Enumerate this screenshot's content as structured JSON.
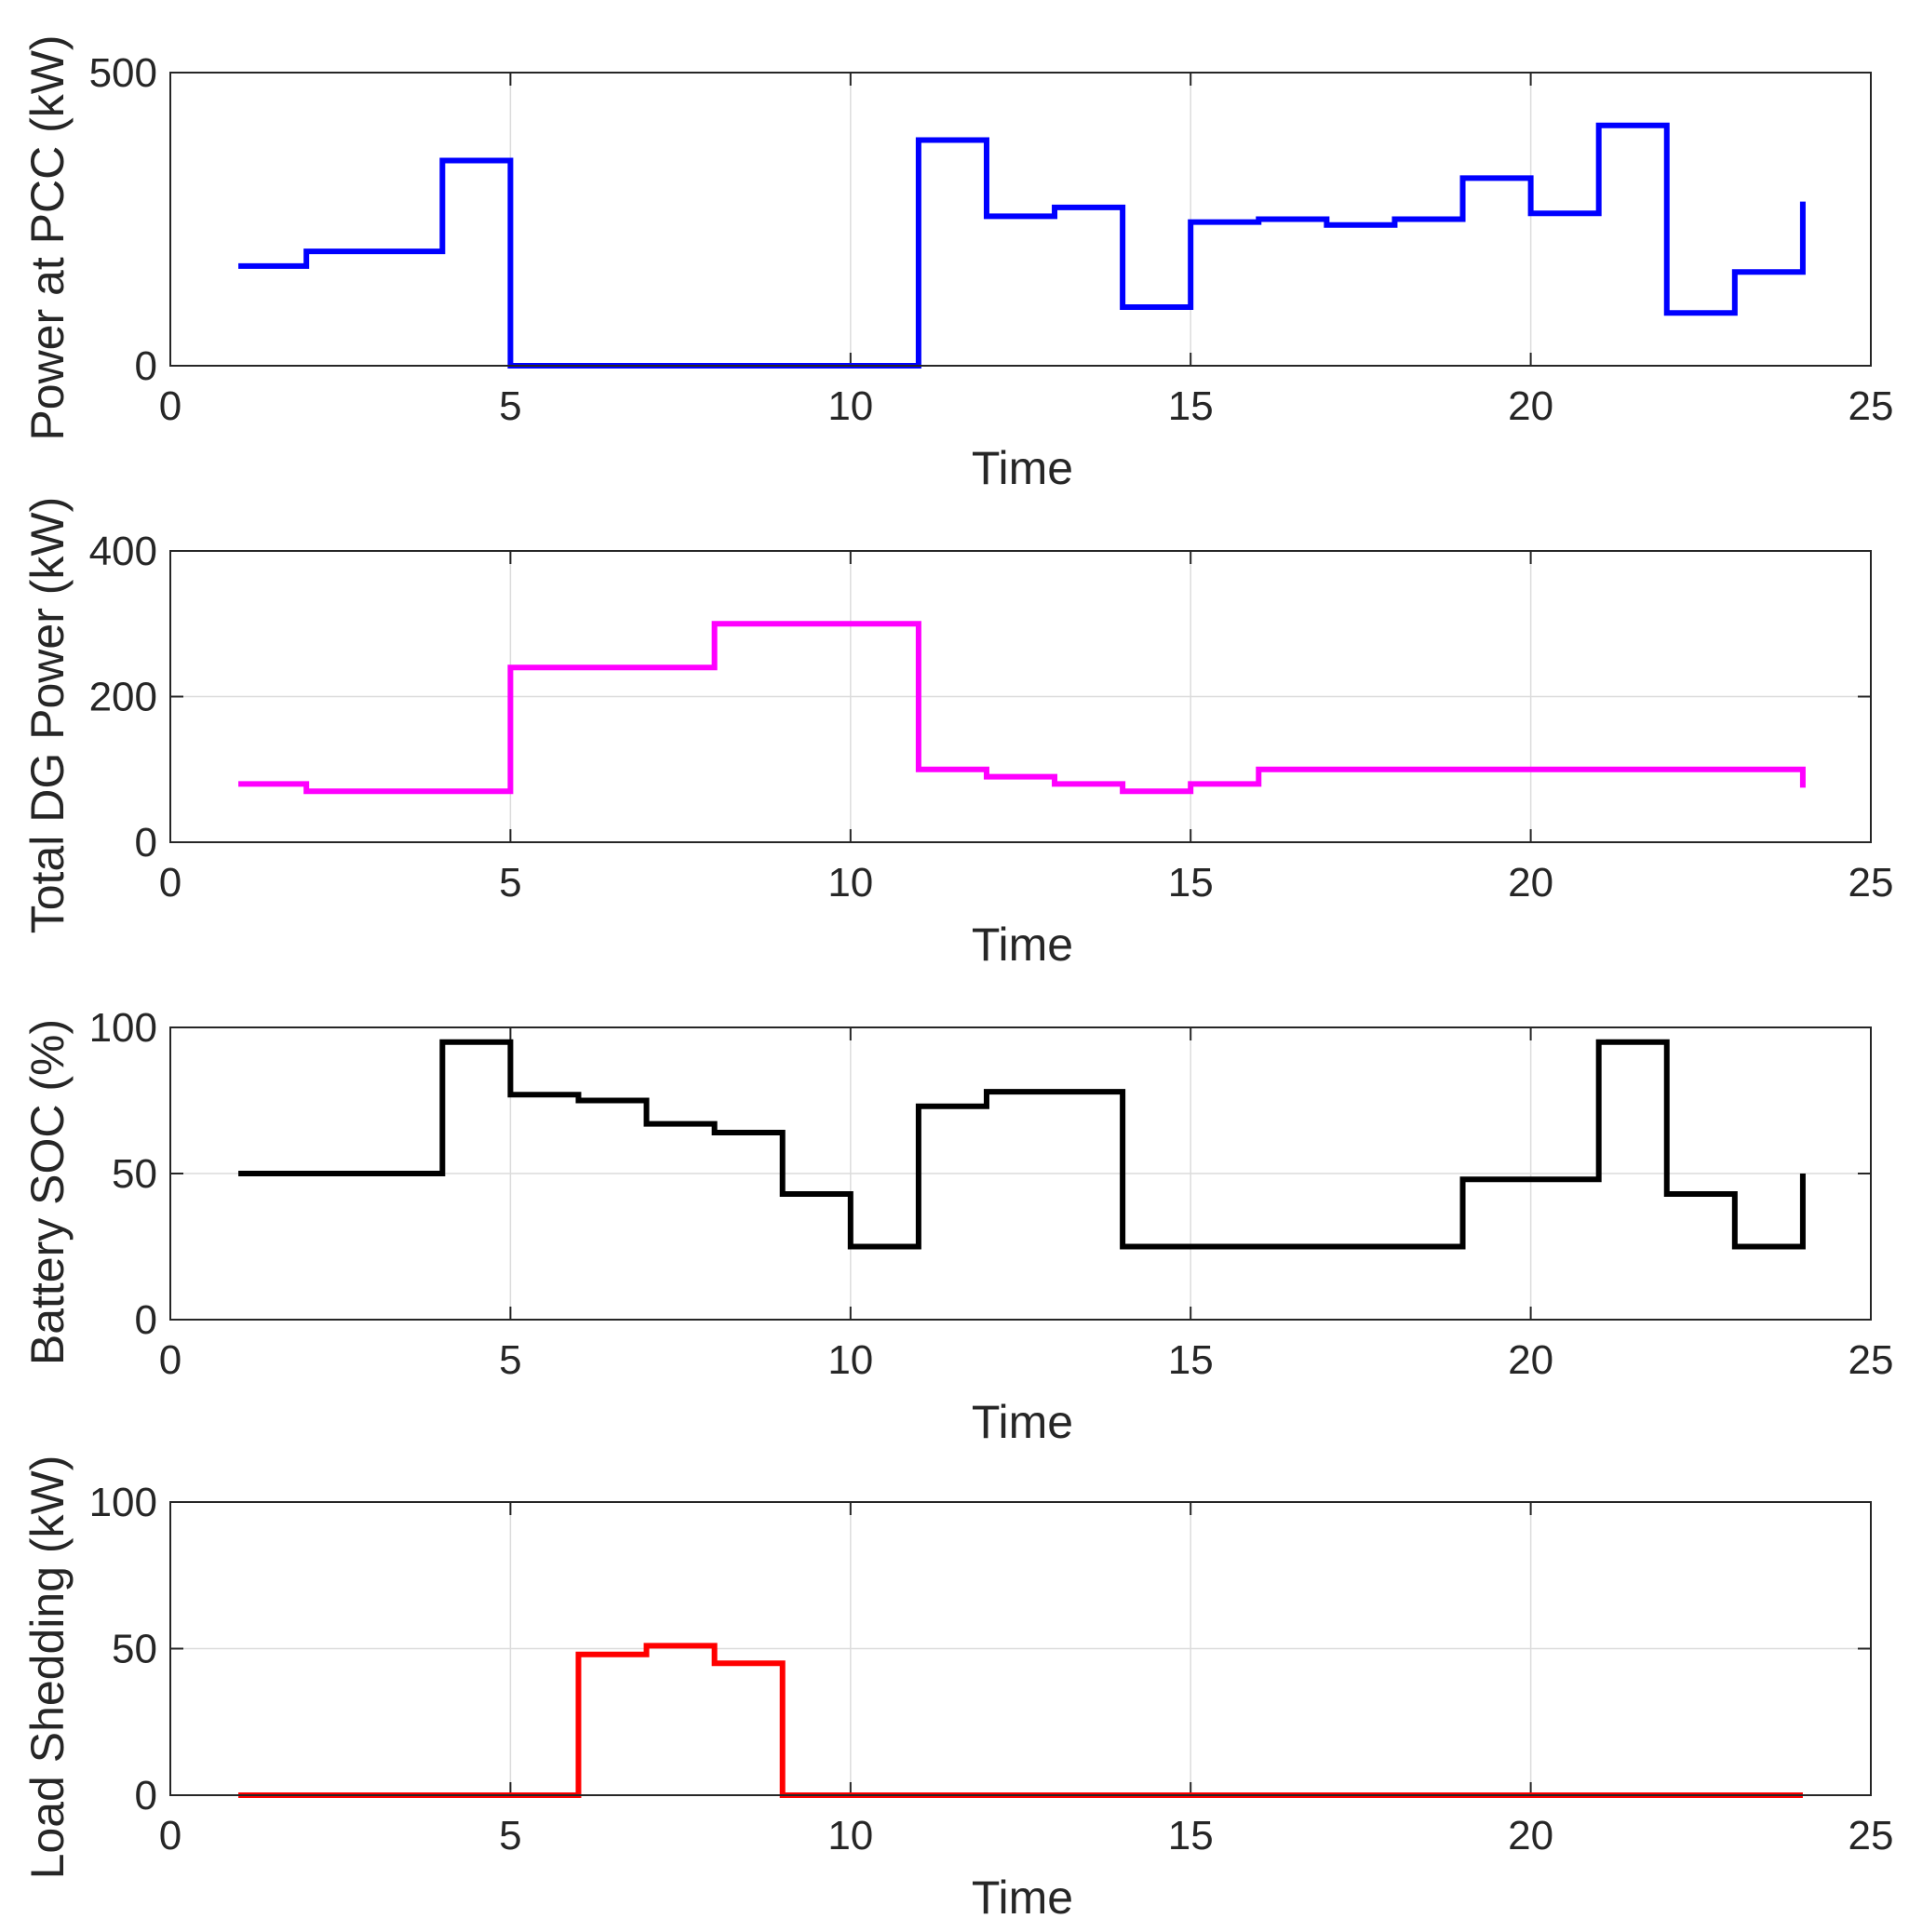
{
  "chart_data": [
    {
      "type": "line",
      "step": true,
      "title": "",
      "xlabel": "Time",
      "ylabel": "Power at PCC (kW)",
      "xlim": [
        0,
        25
      ],
      "ylim": [
        0,
        500
      ],
      "xticks": [
        "0",
        "5",
        "10",
        "15",
        "20",
        "25"
      ],
      "yticks": [
        "0",
        "500"
      ],
      "grid": true,
      "color": "#0000ff",
      "x": [
        1,
        2,
        3,
        4,
        5,
        6,
        7,
        8,
        9,
        10,
        11,
        12,
        13,
        14,
        15,
        16,
        17,
        18,
        19,
        20,
        21,
        22,
        23,
        24
      ],
      "values": [
        170,
        195,
        195,
        350,
        0,
        0,
        0,
        0,
        0,
        0,
        385,
        255,
        270,
        100,
        245,
        250,
        240,
        250,
        320,
        260,
        410,
        90,
        160,
        280
      ]
    },
    {
      "type": "line",
      "step": true,
      "title": "",
      "xlabel": "Time",
      "ylabel": "Total DG Power (kW)",
      "xlim": [
        0,
        25
      ],
      "ylim": [
        0,
        400
      ],
      "xticks": [
        "0",
        "5",
        "10",
        "15",
        "20",
        "25"
      ],
      "yticks": [
        "0",
        "200",
        "400"
      ],
      "grid": true,
      "color": "#ff00ff",
      "x": [
        1,
        2,
        3,
        4,
        5,
        6,
        7,
        8,
        9,
        10,
        11,
        12,
        13,
        14,
        15,
        16,
        17,
        18,
        19,
        20,
        21,
        22,
        23,
        24
      ],
      "values": [
        80,
        70,
        70,
        70,
        240,
        240,
        240,
        300,
        300,
        300,
        100,
        90,
        80,
        70,
        80,
        100,
        100,
        100,
        100,
        100,
        100,
        100,
        100,
        75
      ]
    },
    {
      "type": "line",
      "step": true,
      "title": "",
      "xlabel": "Time",
      "ylabel": "Battery SOC (%)",
      "xlim": [
        0,
        25
      ],
      "ylim": [
        0,
        100
      ],
      "xticks": [
        "0",
        "5",
        "10",
        "15",
        "20",
        "25"
      ],
      "yticks": [
        "0",
        "50",
        "100"
      ],
      "grid": true,
      "color": "#000000",
      "x": [
        1,
        2,
        3,
        4,
        5,
        6,
        7,
        8,
        9,
        10,
        11,
        12,
        13,
        14,
        15,
        16,
        17,
        18,
        19,
        20,
        21,
        22,
        23,
        24
      ],
      "values": [
        50,
        50,
        50,
        95,
        77,
        75,
        67,
        64,
        43,
        25,
        73,
        78,
        78,
        25,
        25,
        25,
        25,
        25,
        48,
        48,
        95,
        43,
        25,
        50
      ]
    },
    {
      "type": "line",
      "step": true,
      "title": "",
      "xlabel": "Time",
      "ylabel": "Load Shedding (kW)",
      "xlim": [
        0,
        25
      ],
      "ylim": [
        0,
        100
      ],
      "xticks": [
        "0",
        "5",
        "10",
        "15",
        "20",
        "25"
      ],
      "yticks": [
        "0",
        "50",
        "100"
      ],
      "grid": true,
      "color": "#ff0000",
      "x": [
        1,
        2,
        3,
        4,
        5,
        6,
        7,
        8,
        9,
        10,
        11,
        12,
        13,
        14,
        15,
        16,
        17,
        18,
        19,
        20,
        21,
        22,
        23,
        24
      ],
      "values": [
        0,
        0,
        0,
        0,
        0,
        48,
        51,
        45,
        0,
        0,
        0,
        0,
        0,
        0,
        0,
        0,
        0,
        0,
        0,
        0,
        0,
        0,
        0,
        0
      ]
    }
  ]
}
